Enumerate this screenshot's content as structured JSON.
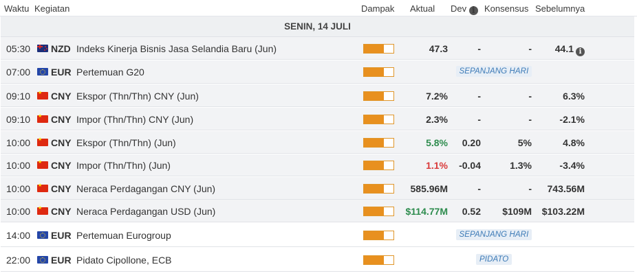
{
  "columns": {
    "time": "Waktu",
    "event": "Kegiatan",
    "impact": "Dampak",
    "actual": "Aktual",
    "dev": "Dev",
    "consensus": "Konsensus",
    "previous": "Sebelumnya"
  },
  "day_header": "SENIN, 14 JULI",
  "colors": {
    "impact_fill": "#e8901f",
    "positive": "#2e8c4e",
    "negative": "#d93a3a",
    "tag_text": "#3c7ab6"
  },
  "rows": [
    {
      "time": "05:30",
      "flag_icon": "nz-flag-icon",
      "currency": "NZD",
      "event": "Indeks Kinerja Bisnis Jasa Selandia Baru (Jun)",
      "impact_level": 0.67,
      "actual": "47.3",
      "dev": "-",
      "consensus": "-",
      "previous": "44.1",
      "previous_info_icon": "info-icon"
    },
    {
      "time": "07:00",
      "flag_icon": "eu-flag-icon",
      "currency": "EUR",
      "event": "Pertemuan G20",
      "impact_level": 0.67,
      "tag": "SEPANJANG HARI"
    },
    {
      "time": "09:10",
      "flag_icon": "cn-flag-icon",
      "currency": "CNY",
      "event": "Ekspor (Thn/Thn) CNY (Jun)",
      "impact_level": 0.67,
      "actual": "7.2%",
      "dev": "-",
      "consensus": "-",
      "previous": "6.3%"
    },
    {
      "time": "09:10",
      "flag_icon": "cn-flag-icon",
      "currency": "CNY",
      "event": "Impor (Thn/Thn) CNY (Jun)",
      "impact_level": 0.67,
      "actual": "2.3%",
      "dev": "-",
      "consensus": "-",
      "previous": "-2.1%"
    },
    {
      "time": "10:00",
      "flag_icon": "cn-flag-icon",
      "currency": "CNY",
      "event": "Ekspor (Thn/Thn) (Jun)",
      "impact_level": 0.67,
      "actual": "5.8%",
      "actual_status": "positive",
      "dev": "0.20",
      "consensus": "5%",
      "previous": "4.8%"
    },
    {
      "time": "10:00",
      "flag_icon": "cn-flag-icon",
      "currency": "CNY",
      "event": "Impor (Thn/Thn) (Jun)",
      "impact_level": 0.67,
      "actual": "1.1%",
      "actual_status": "negative",
      "dev": "-0.04",
      "consensus": "1.3%",
      "previous": "-3.4%"
    },
    {
      "time": "10:00",
      "flag_icon": "cn-flag-icon",
      "currency": "CNY",
      "event": "Neraca Perdagangan CNY (Jun)",
      "impact_level": 0.67,
      "actual": "585.96M",
      "dev": "-",
      "consensus": "-",
      "previous": "743.56M"
    },
    {
      "time": "10:00",
      "flag_icon": "cn-flag-icon",
      "currency": "CNY",
      "event": "Neraca Perdagangan USD (Jun)",
      "impact_level": 0.67,
      "actual": "$114.77M",
      "actual_status": "positive",
      "dev": "0.52",
      "consensus": "$109M",
      "previous": "$103.22M"
    },
    {
      "time": "14:00",
      "flag_icon": "eu-flag-icon",
      "currency": "EUR",
      "event": "Pertemuan Eurogroup",
      "impact_level": 0.67,
      "tag": "SEPANJANG HARI"
    },
    {
      "time": "22:00",
      "flag_icon": "eu-flag-icon",
      "currency": "EUR",
      "event": "Pidato Cipollone, ECB",
      "impact_level": 0.67,
      "tag": "PIDATO"
    }
  ]
}
